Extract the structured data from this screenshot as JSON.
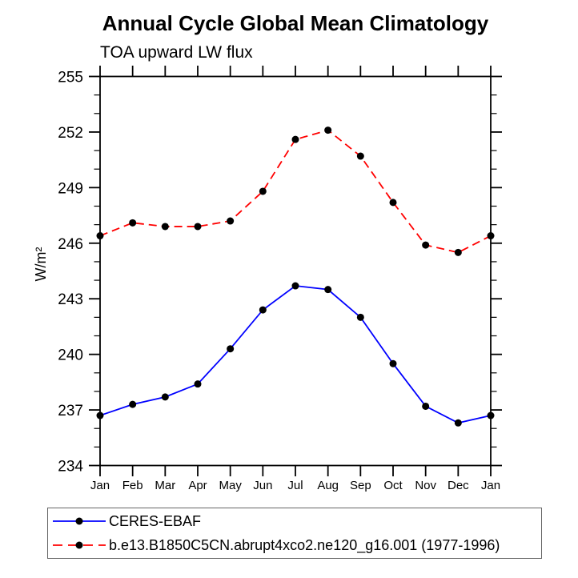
{
  "chart_data": {
    "type": "line",
    "title": "Annual Cycle Global Mean Climatology",
    "subtitle": "TOA upward LW flux",
    "ylabel": "W/m²",
    "xlabel": "",
    "categories": [
      "Jan",
      "Feb",
      "Mar",
      "Apr",
      "May",
      "Jun",
      "Jul",
      "Aug",
      "Sep",
      "Oct",
      "Nov",
      "Dec",
      "Jan"
    ],
    "ylim": [
      234,
      255
    ],
    "ytick_major_step": 3,
    "ytick_minor_step": 1,
    "ytick_labels": [
      "234",
      "237",
      "240",
      "243",
      "246",
      "249",
      "252",
      "255"
    ],
    "grid": false,
    "frame_color": "#000000",
    "marker_color": "#000000",
    "legend_position": "bottom-left",
    "series": [
      {
        "name": "CERES-EBAF",
        "color": "#0000ff",
        "line_style": "solid",
        "marker": "filled-circle",
        "values": [
          236.7,
          237.3,
          237.7,
          238.4,
          240.3,
          242.4,
          243.7,
          243.5,
          242.0,
          239.5,
          237.2,
          236.3,
          236.7
        ]
      },
      {
        "name": "b.e13.B1850C5CN.abrupt4xco2.ne120_g16.001 (1977-1996)",
        "color": "#ff0000",
        "line_style": "dashed",
        "marker": "filled-circle",
        "values": [
          246.4,
          247.1,
          246.9,
          246.9,
          247.2,
          248.8,
          251.6,
          252.1,
          250.7,
          248.2,
          245.9,
          245.5,
          246.4
        ]
      }
    ]
  }
}
